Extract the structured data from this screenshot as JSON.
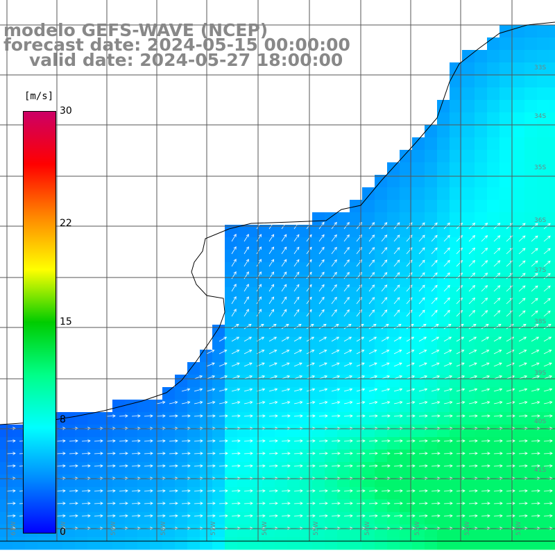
{
  "title": {
    "line1": "modelo GEFS-WAVE (NCEP)",
    "line2": "forecast date: 2024-05-15 00:00:00",
    "line3": "valid date: 2024-05-27 18:00:00"
  },
  "colorbar": {
    "unit": "[m/s]",
    "min": 0,
    "max": 30,
    "ticks": [
      {
        "value": 30,
        "label": "30"
      },
      {
        "value": 22,
        "label": "22"
      },
      {
        "value": 15,
        "label": "15"
      },
      {
        "value": 8,
        "label": "8"
      },
      {
        "value": 0,
        "label": "0"
      }
    ],
    "colors": [
      "#0000ff",
      "#0088ff",
      "#00ffff",
      "#00ff88",
      "#00cc00",
      "#ffff00",
      "#ff8800",
      "#ff0000",
      "#cc0066"
    ]
  },
  "grid": {
    "lat_labels_right": [
      "33S",
      "34S",
      "35S",
      "36S",
      "37S",
      "38S",
      "39S",
      "40S",
      "41S"
    ],
    "lon_labels_bottom": [
      "61W",
      "60W",
      "59W",
      "58W",
      "57W",
      "56W",
      "55W",
      "54W",
      "53W",
      "52W",
      "51W"
    ]
  },
  "map": {
    "land_color": "#ffffff",
    "coast_color": "#000000",
    "arrow_color": "#ffffff",
    "grid_color": "#555555"
  }
}
